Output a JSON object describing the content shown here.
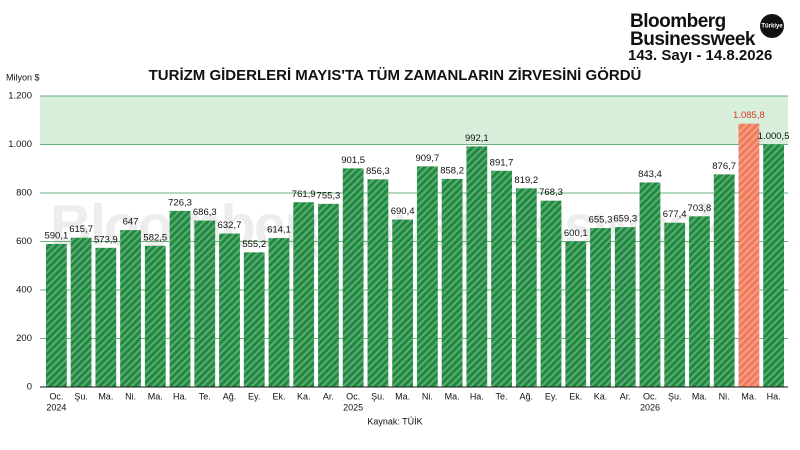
{
  "header": {
    "brand_line1": "Bloomberg",
    "brand_line2": "Businessweek",
    "badge": "Türkiye",
    "issue": "143. Sayı - 14.8.2026"
  },
  "chart_data": {
    "type": "bar",
    "title": "TURİZM GİDERLERİ MAYIS'TA TÜM ZAMANLARIN ZİRVESİNİ GÖRDÜ",
    "y_axis_label": "Milyon $",
    "source": "Kaynak: TÜİK",
    "watermark": "Bloomberg Businessweek",
    "categories": [
      "Oc.",
      "Şu.",
      "Ma.",
      "Ni.",
      "Ma.",
      "Ha.",
      "Te.",
      "Ağ.",
      "Ey.",
      "Ek.",
      "Ka.",
      "Ar.",
      "Oc.",
      "Şu.",
      "Ma.",
      "Ni.",
      "Ma.",
      "Ha.",
      "Te.",
      "Ağ.",
      "Ey.",
      "Ek.",
      "Ka.",
      "Ar.",
      "Oc.",
      "Şu.",
      "Ma.",
      "Ni.",
      "Ma.",
      "Ha."
    ],
    "years": [
      "2024",
      null,
      null,
      null,
      null,
      null,
      null,
      null,
      null,
      null,
      null,
      null,
      "2025",
      null,
      null,
      null,
      null,
      null,
      null,
      null,
      null,
      null,
      null,
      null,
      "2026",
      null,
      null,
      null,
      null,
      null
    ],
    "values": [
      590.1,
      615.7,
      573.9,
      647,
      582.5,
      726.3,
      686.3,
      632.7,
      555.2,
      614.1,
      761.9,
      755.3,
      901.5,
      856.3,
      690.4,
      909.7,
      858.2,
      992.1,
      891.7,
      819.2,
      768.3,
      600.1,
      655.3,
      659.3,
      843.4,
      677.4,
      703.8,
      876.7,
      1085.8,
      1000.5
    ],
    "value_labels": [
      "590,1",
      "615,7",
      "573,9",
      "647",
      "582,5",
      "726,3",
      "686,3",
      "632,7",
      "555,2",
      "614,1",
      "761,9",
      "755,3",
      "901,5",
      "856,3",
      "690,4",
      "909,7",
      "858,2",
      "992,1",
      "891,7",
      "819,2",
      "768,3",
      "600,1",
      "655,3",
      "659,3",
      "843,4",
      "677,4",
      "703,8",
      "876,7",
      "1.085,8",
      "1.000,5"
    ],
    "colors": [
      "#1f8a3f",
      "#1f8a3f",
      "#1f8a3f",
      "#1f8a3f",
      "#1f8a3f",
      "#1f8a3f",
      "#1f8a3f",
      "#1f8a3f",
      "#1f8a3f",
      "#1f8a3f",
      "#1f8a3f",
      "#1f8a3f",
      "#1f8a3f",
      "#1f8a3f",
      "#1f8a3f",
      "#1f8a3f",
      "#1f8a3f",
      "#1f8a3f",
      "#1f8a3f",
      "#1f8a3f",
      "#1f8a3f",
      "#1f8a3f",
      "#1f8a3f",
      "#1f8a3f",
      "#1f8a3f",
      "#1f8a3f",
      "#1f8a3f",
      "#1f8a3f",
      "#f07a5a",
      "#1f8a3f"
    ],
    "label_colors": [
      "#111",
      "#111",
      "#111",
      "#111",
      "#111",
      "#111",
      "#111",
      "#111",
      "#111",
      "#111",
      "#111",
      "#111",
      "#111",
      "#111",
      "#111",
      "#111",
      "#111",
      "#111",
      "#111",
      "#111",
      "#111",
      "#111",
      "#111",
      "#111",
      "#111",
      "#111",
      "#111",
      "#111",
      "#d83a2a",
      "#111"
    ],
    "highlight_band": {
      "from": 1000,
      "to": 1200,
      "color": "#d8efdc"
    },
    "ylim": [
      0,
      1200
    ],
    "yticks": [
      0,
      200,
      400,
      600,
      800,
      {
        "value": 1000,
        "label": "1.000"
      },
      {
        "value": 1200,
        "label": "1.200"
      }
    ],
    "grid": true
  }
}
